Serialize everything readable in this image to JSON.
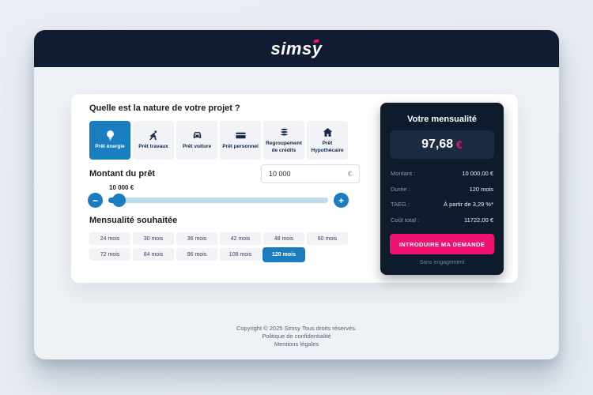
{
  "logo": {
    "text": "simsy"
  },
  "calculator": {
    "question": "Quelle est la nature de votre projet ?",
    "tabs": [
      {
        "label": "Prêt énergie",
        "icon": "lightbulb-icon",
        "selected": true
      },
      {
        "label": "Prêt travaux",
        "icon": "worker-icon",
        "selected": false
      },
      {
        "label": "Prêt voiture",
        "icon": "car-icon",
        "selected": false
      },
      {
        "label": "Prêt personnel",
        "icon": "credit-card-icon",
        "selected": false
      },
      {
        "label": "Regroupement de crédits",
        "icon": "layers-icon",
        "selected": false
      },
      {
        "label": "Prêt Hypothécaire",
        "icon": "house-icon",
        "selected": false
      }
    ],
    "amount": {
      "label": "Montant du prêt",
      "input_value": "10 000",
      "currency": "€",
      "slider_value": "10 000 €",
      "minus": "−",
      "plus": "+"
    },
    "duration": {
      "label": "Mensualité souhaitée",
      "options": [
        "24 mois",
        "30 mois",
        "36 mois",
        "42 mois",
        "48 mois",
        "60 mois",
        "72 mois",
        "84 mois",
        "96 mois",
        "108 mois",
        "120 mois"
      ],
      "selected": "120 mois"
    }
  },
  "summary": {
    "title": "Votre mensualité",
    "monthly_amount": "97,68",
    "currency": "€",
    "rows": [
      {
        "label": "Montant :",
        "value": "10 000,00 €"
      },
      {
        "label": "Durée :",
        "value": "120 mois"
      },
      {
        "label": "TAEG :",
        "value": "À partir de 3,29 %*"
      },
      {
        "label": "Coût total :",
        "value": "11722,00 €"
      }
    ],
    "cta": "INTRODUIRE MA DEMANDE",
    "note": "Sans engagement"
  },
  "footer": {
    "copyright": "Copyright © 2025 Simsy Tous droits réservés.",
    "links": [
      "Politique de confidentialité",
      "Mentions légales"
    ]
  },
  "colors": {
    "accent_blue": "#1a7dc0",
    "accent_pink": "#f1116e",
    "header_navy": "#111c33",
    "panel_navy": "#0d1b2d",
    "track_blue": "#bdd9ec"
  }
}
